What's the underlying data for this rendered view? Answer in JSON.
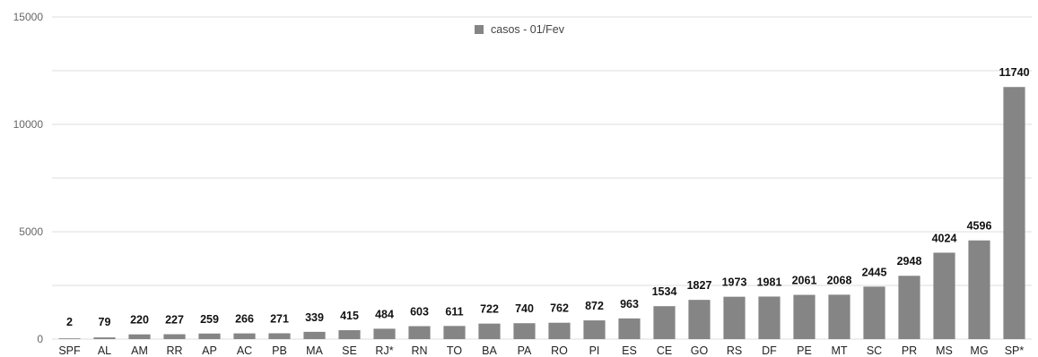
{
  "chart_data": {
    "type": "bar",
    "categories": [
      "SPF",
      "AL",
      "AM",
      "RR",
      "AP",
      "AC",
      "PB",
      "MA",
      "SE",
      "RJ*",
      "RN",
      "TO",
      "BA",
      "PA",
      "RO",
      "PI",
      "ES",
      "CE",
      "GO",
      "RS",
      "DF",
      "PE",
      "MT",
      "SC",
      "PR",
      "MS",
      "MG",
      "SP*"
    ],
    "series": [
      {
        "name": "casos - 01/Fev",
        "values": [
          2,
          79,
          220,
          227,
          259,
          266,
          271,
          339,
          415,
          484,
          603,
          611,
          722,
          740,
          762,
          872,
          963,
          1534,
          1827,
          1973,
          1981,
          2061,
          2068,
          2445,
          2948,
          4024,
          4596,
          11740
        ]
      }
    ],
    "y_ticks": [
      0,
      5000,
      10000,
      15000
    ],
    "ylim": [
      0,
      15000
    ],
    "grid": true,
    "gridline_step": 2500,
    "legend_position": "top-center",
    "bar_color": "#858585",
    "data_labels": true
  }
}
